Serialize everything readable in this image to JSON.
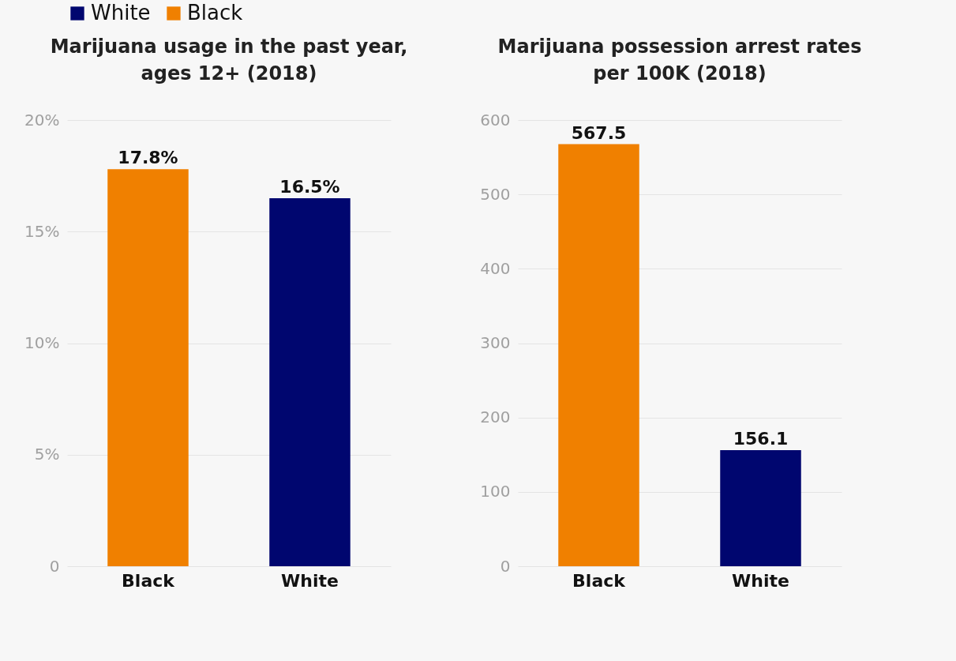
{
  "chart_data": [
    {
      "type": "bar",
      "title": "Marijuana usage in the past year, ages 12+ (2018)",
      "categories": [
        "Black",
        "White"
      ],
      "series": [
        {
          "name": "White",
          "color": "#00066f",
          "values": [
            null,
            16.5
          ],
          "value_labels": [
            null,
            "16.5%"
          ]
        },
        {
          "name": "Black",
          "color": "#f08000",
          "values": [
            17.8,
            null
          ],
          "value_labels": [
            "17.8%",
            null
          ]
        }
      ],
      "ylim": [
        0,
        20
      ],
      "yticks": [
        0,
        {
          "value": 5,
          "label": "5%"
        },
        {
          "value": 10,
          "label": "10%"
        },
        {
          "value": 15,
          "label": "15%"
        },
        {
          "value": 20,
          "label": "20%"
        }
      ],
      "grid": "y",
      "legend": "top"
    },
    {
      "type": "bar",
      "title": "Marijuana possession arrest rates per 100K (2018)",
      "categories": [
        "Black",
        "White"
      ],
      "series": [
        {
          "name": "White",
          "color": "#00066f",
          "values": [
            null,
            156.1
          ]
        },
        {
          "name": "Black",
          "color": "#f08000",
          "values": [
            567.5,
            null
          ]
        }
      ],
      "ylim": [
        0,
        600
      ],
      "yticks": [
        0,
        100,
        200,
        300,
        400,
        500,
        600
      ],
      "grid": "y",
      "legend": "top",
      "data_labels": true
    }
  ]
}
